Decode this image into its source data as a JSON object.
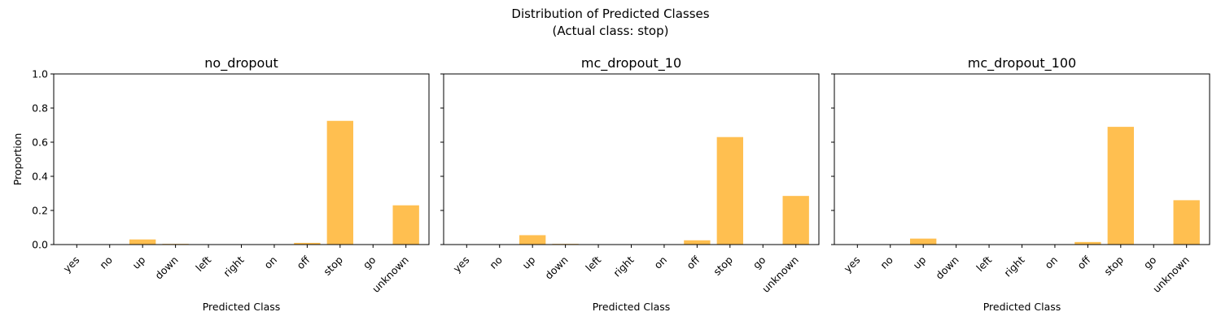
{
  "figure": {
    "title_line1": "Distribution of Predicted Classes",
    "title_line2": "(Actual class: stop)"
  },
  "chart_data": [
    {
      "type": "bar",
      "title": "no_dropout",
      "xlabel": "Predicted Class",
      "ylabel": "Proportion",
      "ylim": [
        0,
        1.0
      ],
      "yticks": [
        "0.0",
        "0.2",
        "0.4",
        "0.6",
        "0.8",
        "1.0"
      ],
      "categories": [
        "yes",
        "no",
        "up",
        "down",
        "left",
        "right",
        "on",
        "off",
        "stop",
        "go",
        "unknown"
      ],
      "values": [
        0.0,
        0.0,
        0.03,
        0.004,
        0.0,
        0.0,
        0.0,
        0.01,
        0.725,
        0.0,
        0.23
      ],
      "color": "#FFBF50",
      "grid": false
    },
    {
      "type": "bar",
      "title": "mc_dropout_10",
      "xlabel": "Predicted Class",
      "ylabel": "",
      "ylim": [
        0,
        1.0
      ],
      "yticks": [
        "0.0",
        "0.2",
        "0.4",
        "0.6",
        "0.8",
        "1.0"
      ],
      "categories": [
        "yes",
        "no",
        "up",
        "down",
        "left",
        "right",
        "on",
        "off",
        "stop",
        "go",
        "unknown"
      ],
      "values": [
        0.0,
        0.0,
        0.055,
        0.004,
        0.0,
        0.0,
        0.0,
        0.025,
        0.63,
        0.0,
        0.285
      ],
      "color": "#FFBF50",
      "grid": false
    },
    {
      "type": "bar",
      "title": "mc_dropout_100",
      "xlabel": "Predicted Class",
      "ylabel": "",
      "ylim": [
        0,
        1.0
      ],
      "yticks": [
        "0.0",
        "0.2",
        "0.4",
        "0.6",
        "0.8",
        "1.0"
      ],
      "categories": [
        "yes",
        "no",
        "up",
        "down",
        "left",
        "right",
        "on",
        "off",
        "stop",
        "go",
        "unknown"
      ],
      "values": [
        0.0,
        0.0,
        0.035,
        0.0,
        0.0,
        0.0,
        0.0,
        0.015,
        0.69,
        0.0,
        0.26
      ],
      "color": "#FFBF50",
      "grid": false
    }
  ]
}
